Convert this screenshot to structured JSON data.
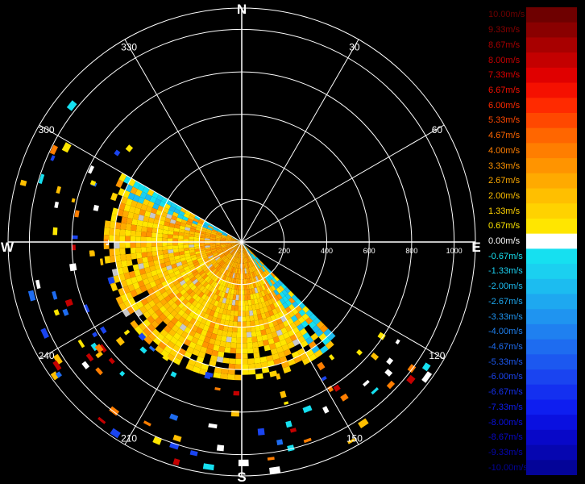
{
  "chart_data": {
    "type": "radar-ppi",
    "title": "",
    "compass": {
      "north": "N",
      "east": "E",
      "south": "S",
      "west": "W"
    },
    "azimuth_labels": [
      "30",
      "60",
      "120",
      "150",
      "210",
      "240",
      "300",
      "330"
    ],
    "azimuths_deg": [
      30,
      60,
      120,
      150,
      210,
      240,
      300,
      330
    ],
    "range_rings": [
      200,
      400,
      600,
      800,
      1000
    ],
    "range_labels": [
      "200",
      "400",
      "600",
      "800",
      "1000"
    ],
    "range_max": 1100,
    "sector": {
      "az_start_deg": 135,
      "az_end_deg": 300,
      "range_max": 650
    },
    "colorbar": {
      "unit": "m/s",
      "labels": [
        "10.00m/s",
        "9.33m/s",
        "8.67m/s",
        "8.00m/s",
        "7.33m/s",
        "6.67m/s",
        "6.00m/s",
        "5.33m/s",
        "4.67m/s",
        "4.00m/s",
        "3.33m/s",
        "2.67m/s",
        "2.00m/s",
        "1.33m/s",
        "0.67m/s",
        "0.00m/s",
        "-0.67m/s",
        "-1.33m/s",
        "-2.00m/s",
        "-2.67m/s",
        "-3.33m/s",
        "-4.00m/s",
        "-4.67m/s",
        "-5.33m/s",
        "-6.00m/s",
        "-6.67m/s",
        "-7.33m/s",
        "-8.00m/s",
        "-8.67m/s",
        "-9.33m/s",
        "-10.00m/s"
      ],
      "values": [
        10.0,
        9.33,
        8.67,
        8.0,
        7.33,
        6.67,
        6.0,
        5.33,
        4.67,
        4.0,
        3.33,
        2.67,
        2.0,
        1.33,
        0.67,
        0.0,
        -0.67,
        -1.33,
        -2.0,
        -2.67,
        -3.33,
        -4.0,
        -4.67,
        -5.33,
        -6.0,
        -6.67,
        -7.33,
        -8.0,
        -8.67,
        -9.33,
        -10.0
      ],
      "colors": [
        "#6e0000",
        "#8a0000",
        "#a80000",
        "#c40000",
        "#e00000",
        "#f51000",
        "#ff2a00",
        "#ff4800",
        "#ff6600",
        "#ff7e00",
        "#ff9400",
        "#ffaa00",
        "#ffbf00",
        "#ffd200",
        "#ffe600",
        "#ffffff",
        "#16e0f0",
        "#1bd0f0",
        "#1cbcf0",
        "#1ea8f0",
        "#1f94f0",
        "#1f80f0",
        "#1e6cf0",
        "#1c58f0",
        "#1a44f0",
        "#1430f0",
        "#0e1ef0",
        "#0a10e0",
        "#0808c8",
        "#0606b0",
        "#040498"
      ]
    }
  }
}
